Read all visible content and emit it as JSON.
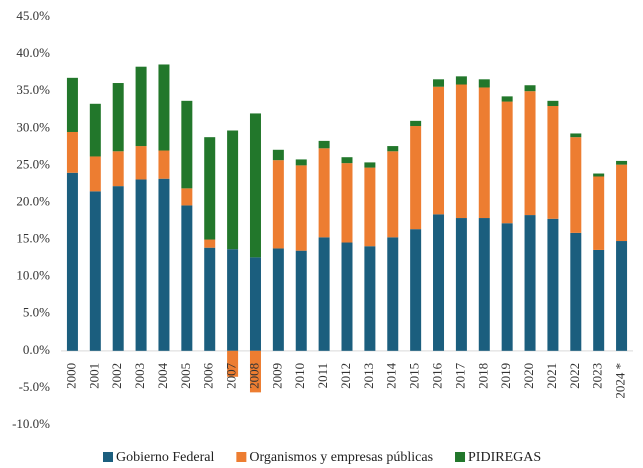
{
  "chart_data": {
    "type": "bar",
    "stacked": true,
    "categories": [
      "2000",
      "2001",
      "2002",
      "2003",
      "2004",
      "2005",
      "2006",
      "2007",
      "2008",
      "2009",
      "2010",
      "2011",
      "2012",
      "2013",
      "2014",
      "2015",
      "2016",
      "2017",
      "2018",
      "2019",
      "2020",
      "2021",
      "2022",
      "2023",
      "2024 *"
    ],
    "series": [
      {
        "name": "Gobierno Federal",
        "color": "#1b5e7e",
        "values": [
          24.0,
          21.5,
          22.2,
          23.1,
          23.2,
          19.6,
          13.9,
          13.7,
          12.6,
          13.8,
          13.5,
          15.3,
          14.6,
          14.1,
          15.3,
          16.4,
          18.4,
          17.9,
          17.9,
          17.2,
          18.3,
          17.8,
          15.9,
          13.6,
          14.8
        ]
      },
      {
        "name": "Organismos y empresas públicas",
        "color": "#ed7d31",
        "values": [
          5.5,
          4.7,
          4.7,
          4.5,
          3.8,
          2.3,
          1.1,
          -3.5,
          -5.6,
          11.9,
          11.5,
          12.0,
          10.7,
          10.6,
          11.6,
          13.9,
          17.2,
          18.0,
          17.6,
          16.4,
          16.7,
          15.2,
          12.9,
          9.9,
          10.3
        ]
      },
      {
        "name": "PIDIREGAS",
        "color": "#22772b",
        "values": [
          7.3,
          7.1,
          9.2,
          10.7,
          11.6,
          11.8,
          13.8,
          16.0,
          19.4,
          1.4,
          0.8,
          1.0,
          0.8,
          0.7,
          0.7,
          0.7,
          1.0,
          1.1,
          1.1,
          0.7,
          0.8,
          0.7,
          0.5,
          0.4,
          0.5
        ]
      }
    ],
    "ylim": [
      -10,
      45
    ],
    "yticks": [
      {
        "value": -10,
        "label": "-10.0%"
      },
      {
        "value": -5,
        "label": "-5.0%"
      },
      {
        "value": 0,
        "label": "0.0%"
      },
      {
        "value": 5,
        "label": "5.0%"
      },
      {
        "value": 10,
        "label": "10.0%"
      },
      {
        "value": 15,
        "label": "15.0%"
      },
      {
        "value": 20,
        "label": "20.0%"
      },
      {
        "value": 25,
        "label": "25.0%"
      },
      {
        "value": 30,
        "label": "30.0%"
      },
      {
        "value": 35,
        "label": "35.0%"
      },
      {
        "value": 40,
        "label": "40.0%"
      },
      {
        "value": 45,
        "label": "45.0%"
      }
    ],
    "legend": "bottom"
  }
}
